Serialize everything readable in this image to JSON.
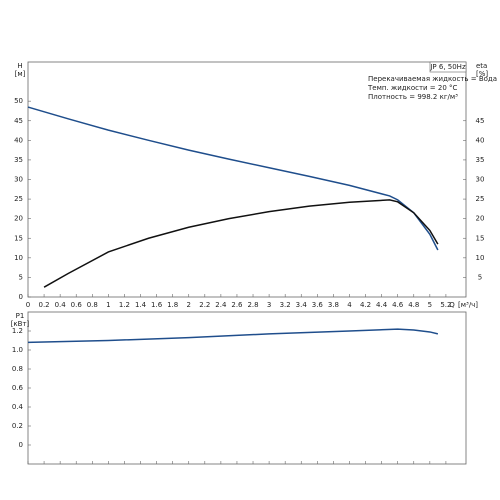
{
  "chart_data": [
    {
      "type": "line",
      "ylabel": "H",
      "yunit": "[м]",
      "y2label": "eta",
      "y2unit": "[%]",
      "xlabel": "Q",
      "xunit": "[м³/ч]",
      "legend_box": "JP 6, 50Hz",
      "notes": [
        "Перекачиваемая жидкость = Вода",
        "Темп. жидкости = 20 °C",
        "Плотность = 998.2 кг/м³"
      ],
      "xlim": [
        0,
        5.45
      ],
      "xticks": [
        0,
        0.2,
        0.4,
        0.6,
        0.8,
        1,
        1.2,
        1.4,
        1.6,
        1.8,
        2,
        2.2,
        2.4,
        2.6,
        2.8,
        3,
        3.2,
        3.4,
        3.6,
        3.8,
        4,
        4.2,
        4.4,
        4.6,
        4.8,
        5,
        5.2
      ],
      "ylim": [
        0,
        60
      ],
      "yticks": [
        0,
        5,
        10,
        15,
        20,
        25,
        30,
        35,
        40,
        45,
        50
      ],
      "y2lim": [
        0,
        60
      ],
      "y2ticks": [
        5,
        10,
        15,
        20,
        25,
        30,
        35,
        40,
        45
      ],
      "series": [
        {
          "color": "#1f4e8c",
          "x": [
            0,
            0.5,
            1,
            1.5,
            2,
            2.5,
            3,
            3.5,
            4,
            4.5,
            4.6,
            4.8,
            5,
            5.1
          ],
          "values": [
            48.5,
            45.5,
            42.6,
            40,
            37.5,
            35.2,
            33,
            30.8,
            28.5,
            25.8,
            24.8,
            21.5,
            16,
            12
          ]
        },
        {
          "color": "#111111",
          "axis": "y2",
          "x": [
            0.2,
            0.5,
            1,
            1.5,
            2,
            2.5,
            3,
            3.5,
            4,
            4.5,
            4.6,
            4.8,
            5,
            5.1
          ],
          "values": [
            2.5,
            6,
            11.5,
            15,
            17.8,
            20,
            21.8,
            23.2,
            24.2,
            24.8,
            24.3,
            21.5,
            17,
            13.5
          ]
        }
      ]
    },
    {
      "type": "line",
      "ylabel": "P1",
      "yunit": "[кВт]",
      "xlim": [
        0,
        5.45
      ],
      "xticks": [
        0,
        0.2,
        0.4,
        0.6,
        0.8,
        1,
        1.2,
        1.4,
        1.6,
        1.8,
        2,
        2.2,
        2.4,
        2.6,
        2.8,
        3,
        3.2,
        3.4,
        3.6,
        3.8,
        4,
        4.2,
        4.4,
        4.6,
        4.8,
        5,
        5.2
      ],
      "ylim": [
        -0.2,
        1.4
      ],
      "yticks": [
        0,
        0.2,
        0.4,
        0.6,
        0.8,
        {
          "value": 1,
          "label": "1.0"
        },
        1.2
      ],
      "series": [
        {
          "color": "#1f4e8c",
          "x": [
            0,
            1,
            2,
            3,
            4,
            4.6,
            4.8,
            5,
            5.1
          ],
          "values": [
            1.08,
            1.1,
            1.13,
            1.17,
            1.2,
            1.22,
            1.21,
            1.19,
            1.17
          ]
        }
      ]
    }
  ]
}
